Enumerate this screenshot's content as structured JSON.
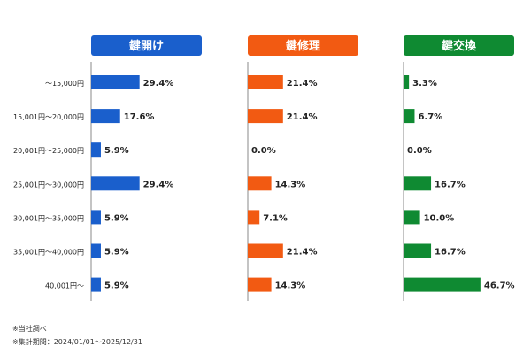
{
  "chart_data": {
    "type": "bar",
    "orientation": "horizontal",
    "categories": [
      "～15,000円",
      "15,001円～20,000円",
      "20,001円～25,000円",
      "25,001円～30,000円",
      "30,001円～35,000円",
      "35,001円～40,000円",
      "40,001円～"
    ],
    "value_suffix": "%",
    "xlim": [
      0,
      100
    ],
    "grid": false,
    "series": [
      {
        "name": "鍵開け",
        "color": "#1a5fcc",
        "values": [
          29.4,
          17.6,
          5.9,
          29.4,
          5.9,
          5.9,
          5.9
        ]
      },
      {
        "name": "鍵修理",
        "color": "#f25a12",
        "values": [
          21.4,
          21.4,
          0.0,
          14.3,
          7.1,
          21.4,
          14.3
        ]
      },
      {
        "name": "鍵交換",
        "color": "#0f8a32",
        "values": [
          3.3,
          6.7,
          0.0,
          16.7,
          10.0,
          16.7,
          46.7
        ]
      }
    ]
  },
  "notes": {
    "source": "※当社調べ",
    "period": "※集計期間：2024/01/01～2025/12/31"
  }
}
